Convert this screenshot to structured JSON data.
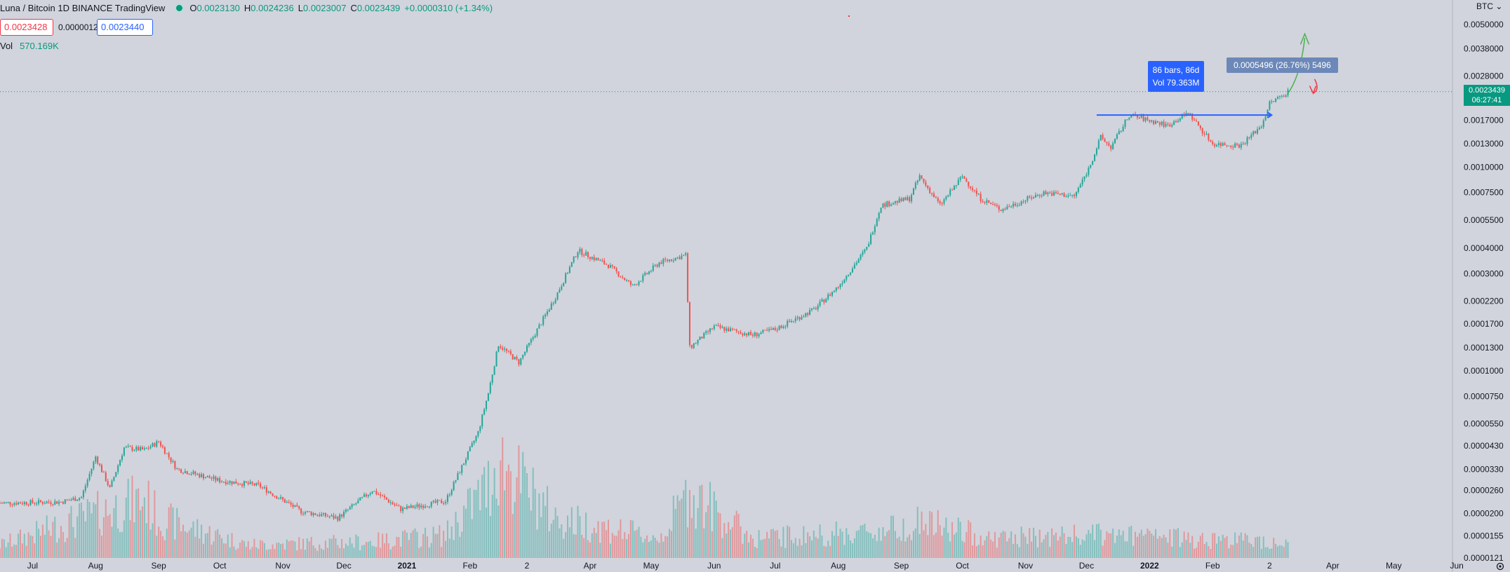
{
  "legend": {
    "title": "Luna / Bitcoin  1D  BINANCE  TradingView",
    "o_label": "O",
    "o": "0.0023130",
    "h_label": "H",
    "h": "0.0024236",
    "l_label": "L",
    "l": "0.0023007",
    "c_label": "C",
    "c": "0.0023439",
    "change": "+0.0000310 (+1.34%)",
    "sell_price": "0.0023428",
    "spread": "0.0000012",
    "buy_price": "0.0023440",
    "vol_label": "Vol",
    "vol_value": "570.169K"
  },
  "toolbar": {
    "currency": "BTC ⌄"
  },
  "price_badge": {
    "price": "0.0023439",
    "countdown": "06:27:41"
  },
  "annotations": {
    "bars_text": "86 bars, 86d",
    "bars_vol": "Vol 79.363M",
    "range_text": "0.0005496 (26.76%) 5496"
  },
  "colors": {
    "up": "#26a69a",
    "down": "#ef5350",
    "background": "#d1d4dc",
    "accent": "#2962ff"
  },
  "chart_data": {
    "type": "candlestick",
    "title": "Luna / Bitcoin  1D  BINANCE",
    "y_scale": "log",
    "ylim": [
      1.21e-05,
      0.006
    ],
    "y_ticks": [
      "0.0050000",
      "0.0038000",
      "0.0028000",
      "0.0017000",
      "0.0013000",
      "0.0010000",
      "0.0007500",
      "0.0005500",
      "0.0004000",
      "0.0003000",
      "0.0002200",
      "0.0001700",
      "0.0001300",
      "0.0001000",
      "0.0000750",
      "0.0000550",
      "0.0000430",
      "0.0000330",
      "0.0000260",
      "0.0000200",
      "0.0000155",
      "0.0000121"
    ],
    "x_ticks": [
      "Jul",
      "Aug",
      "Sep",
      "Oct",
      "Nov",
      "Dec",
      "2021",
      "Feb",
      "2",
      "Apr",
      "May",
      "Jun",
      "Jul",
      "Aug",
      "Sep",
      "Oct",
      "Nov",
      "Dec",
      "2022",
      "Feb",
      "2",
      "Apr",
      "May",
      "Jun"
    ],
    "date_range": [
      "2020-06-15",
      "2022-03-15"
    ],
    "price_path": [
      [
        "2020-06-15",
        2.25e-05
      ],
      [
        "2020-07-15",
        2.28e-05
      ],
      [
        "2020-07-25",
        2.4e-05
      ],
      [
        "2020-08-01",
        3.8e-05
      ],
      [
        "2020-08-08",
        2.65e-05
      ],
      [
        "2020-08-15",
        4.2e-05
      ],
      [
        "2020-08-25",
        4.1e-05
      ],
      [
        "2020-09-01",
        4.5e-05
      ],
      [
        "2020-09-10",
        3.3e-05
      ],
      [
        "2020-10-01",
        2.9e-05
      ],
      [
        "2020-10-20",
        2.75e-05
      ],
      [
        "2020-11-10",
        2.05e-05
      ],
      [
        "2020-11-28",
        1.9e-05
      ],
      [
        "2020-12-15",
        2.6e-05
      ],
      [
        "2020-12-29",
        2.1e-05
      ],
      [
        "2021-01-20",
        2.3e-05
      ],
      [
        "2021-02-05",
        5e-05
      ],
      [
        "2021-02-10",
        7.8e-05
      ],
      [
        "2021-02-15",
        0.000135
      ],
      [
        "2021-02-25",
        0.00011
      ],
      [
        "2021-03-15",
        0.00023
      ],
      [
        "2021-03-26",
        0.00039
      ],
      [
        "2021-04-10",
        0.00033
      ],
      [
        "2021-04-22",
        0.00026
      ],
      [
        "2021-05-05",
        0.00034
      ],
      [
        "2021-05-18",
        0.00037
      ],
      [
        "2021-05-20",
        0.00013
      ],
      [
        "2021-06-01",
        0.000165
      ],
      [
        "2021-06-20",
        0.00015
      ],
      [
        "2021-07-01",
        0.00016
      ],
      [
        "2021-07-20",
        0.0002
      ],
      [
        "2021-08-01",
        0.00026
      ],
      [
        "2021-08-15",
        0.0004
      ],
      [
        "2021-08-22",
        0.00065
      ],
      [
        "2021-09-05",
        0.0007
      ],
      [
        "2021-09-10",
        0.0009
      ],
      [
        "2021-09-20",
        0.00065
      ],
      [
        "2021-10-01",
        0.0009
      ],
      [
        "2021-10-10",
        0.0007
      ],
      [
        "2021-10-20",
        0.00062
      ],
      [
        "2021-11-10",
        0.00075
      ],
      [
        "2021-11-25",
        0.00072
      ],
      [
        "2021-12-02",
        0.00098
      ],
      [
        "2021-12-08",
        0.0014
      ],
      [
        "2021-12-13",
        0.00125
      ],
      [
        "2021-12-22",
        0.0018
      ],
      [
        "2022-01-10",
        0.0016
      ],
      [
        "2022-01-20",
        0.00185
      ],
      [
        "2022-02-01",
        0.0013
      ],
      [
        "2022-02-15",
        0.00128
      ],
      [
        "2022-02-25",
        0.0016
      ],
      [
        "2022-03-01",
        0.00205
      ],
      [
        "2022-03-10",
        0.0023439
      ]
    ],
    "volume_path": [
      [
        "2020-06-15",
        40
      ],
      [
        "2020-08-25",
        180
      ],
      [
        "2020-09-01",
        120
      ],
      [
        "2020-10-15",
        40
      ],
      [
        "2020-12-15",
        50
      ],
      [
        "2021-01-20",
        70
      ],
      [
        "2021-02-10",
        220
      ],
      [
        "2021-02-15",
        300
      ],
      [
        "2021-03-15",
        120
      ],
      [
        "2021-05-05",
        60
      ],
      [
        "2021-05-20",
        200
      ],
      [
        "2021-06-20",
        60
      ],
      [
        "2021-08-20",
        80
      ],
      [
        "2021-09-10",
        110
      ],
      [
        "2021-10-15",
        60
      ],
      [
        "2021-12-08",
        70
      ],
      [
        "2022-01-20",
        60
      ],
      [
        "2022-03-10",
        50
      ]
    ],
    "measure": {
      "bars": 86,
      "days": 86,
      "volume": "79.363M"
    },
    "price_range": {
      "change": "0.0005496",
      "percent": "26.76%",
      "ticks": 5496
    }
  }
}
